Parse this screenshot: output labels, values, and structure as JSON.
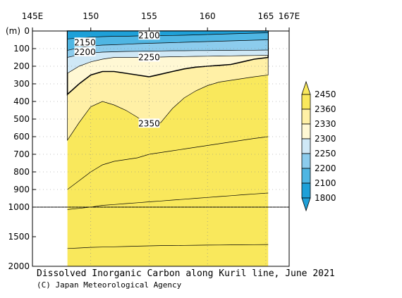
{
  "chart_data": {
    "type": "heatmap",
    "title": "Dissolved Inorganic Carbon along Kuril line, June 2021",
    "credit": "(C) Japan Meteorological Agency",
    "x_ticks": [
      "145E",
      "150",
      "155",
      "160",
      "165",
      "167E"
    ],
    "x_tick_values": [
      145,
      150,
      155,
      160,
      165,
      167
    ],
    "xlim": [
      145,
      167
    ],
    "data_x_range": [
      148,
      165.2
    ],
    "y_unit_label": "(m)",
    "y_ticks_upper": [
      0,
      100,
      200,
      300,
      400,
      500,
      600,
      700,
      800,
      900,
      1000
    ],
    "y_ticks_lower": [
      1000,
      1500,
      2000
    ],
    "y_tick_labels": [
      "0",
      "100",
      "200",
      "300",
      "400",
      "500",
      "600",
      "700",
      "800",
      "900",
      "1000",
      "1500",
      "2000"
    ],
    "ylim": [
      0,
      2000
    ],
    "y_break_depth": 1000,
    "colorbar": {
      "levels": [
        1800,
        2100,
        2200,
        2250,
        2300,
        2330,
        2360,
        2450
      ],
      "labels": [
        "2450",
        "2360",
        "2330",
        "2300",
        "2250",
        "2200",
        "2100",
        "1800"
      ],
      "colors": [
        "#1ea0d8",
        "#4fb6e3",
        "#8ccced",
        "#cfe8f6",
        "#fff8d4",
        "#fff0a6",
        "#f9e85c"
      ]
    },
    "contour_labels": [
      {
        "text": "2100",
        "lon": 155,
        "depth": 25
      },
      {
        "text": "2150",
        "lon": 149.5,
        "depth": 65
      },
      {
        "text": "2200",
        "lon": 149.5,
        "depth": 120
      },
      {
        "text": "2250",
        "lon": 155,
        "depth": 150
      },
      {
        "text": "2350",
        "lon": 155,
        "depth": 525
      }
    ]
  }
}
